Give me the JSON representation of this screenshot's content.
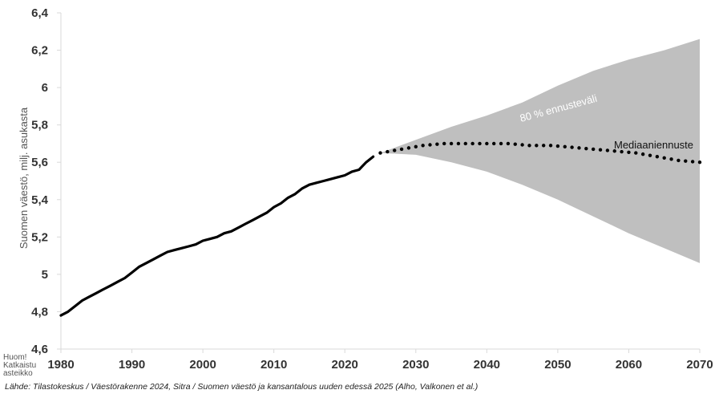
{
  "chart_data": {
    "type": "line",
    "title": "",
    "ylabel": "Suomen väestö, milj. asukasta",
    "xlabel": "",
    "xlim": [
      1980,
      2070
    ],
    "ylim": [
      4.6,
      6.4
    ],
    "x_ticks": [
      1980,
      1990,
      2000,
      2010,
      2020,
      2030,
      2040,
      2050,
      2060,
      2070
    ],
    "y_ticks": [
      "4,6",
      "4,8",
      "5",
      "5,2",
      "5,4",
      "5,6",
      "5,8",
      "6",
      "6,2",
      "6,4"
    ],
    "y_tick_values": [
      4.6,
      4.8,
      5.0,
      5.2,
      5.4,
      5.6,
      5.8,
      6.0,
      6.2,
      6.4
    ],
    "grid": false,
    "axis_break_note": [
      "Huom!",
      "Katkaistu",
      "asteikko"
    ],
    "annotations": {
      "band_label": "80 % ennusteväli",
      "median_label": "Mediaaniennuste"
    },
    "series": [
      {
        "style": "solid",
        "x": [
          1980,
          1981,
          1982,
          1983,
          1984,
          1985,
          1986,
          1987,
          1988,
          1989,
          1990,
          1991,
          1992,
          1993,
          1994,
          1995,
          1996,
          1997,
          1998,
          1999,
          2000,
          2001,
          2002,
          2003,
          2004,
          2005,
          2006,
          2007,
          2008,
          2009,
          2010,
          2011,
          2012,
          2013,
          2014,
          2015,
          2016,
          2017,
          2018,
          2019,
          2020,
          2021,
          2022,
          2023,
          2024
        ],
        "y": [
          4.78,
          4.8,
          4.83,
          4.86,
          4.88,
          4.9,
          4.92,
          4.94,
          4.96,
          4.98,
          5.01,
          5.04,
          5.06,
          5.08,
          5.1,
          5.12,
          5.13,
          5.14,
          5.15,
          5.16,
          5.18,
          5.19,
          5.2,
          5.22,
          5.23,
          5.25,
          5.27,
          5.29,
          5.31,
          5.33,
          5.36,
          5.38,
          5.41,
          5.43,
          5.46,
          5.48,
          5.49,
          5.5,
          5.51,
          5.52,
          5.53,
          5.55,
          5.56,
          5.6,
          5.63
        ]
      },
      {
        "name": "Mediaaniennuste",
        "style": "dotted",
        "x": [
          2025,
          2028,
          2031,
          2034,
          2037,
          2040,
          2043,
          2046,
          2049,
          2052,
          2055,
          2058,
          2061,
          2064,
          2067,
          2070
        ],
        "y": [
          5.65,
          5.67,
          5.69,
          5.7,
          5.7,
          5.7,
          5.7,
          5.69,
          5.69,
          5.68,
          5.67,
          5.66,
          5.65,
          5.63,
          5.61,
          5.6
        ]
      },
      {
        "name": "80 % ennusteväli",
        "style": "band",
        "x": [
          2025,
          2030,
          2035,
          2040,
          2045,
          2050,
          2055,
          2060,
          2065,
          2070
        ],
        "upper": [
          5.65,
          5.72,
          5.79,
          5.85,
          5.92,
          6.01,
          6.09,
          6.15,
          6.2,
          6.26
        ],
        "lower": [
          5.65,
          5.64,
          5.6,
          5.55,
          5.48,
          5.4,
          5.31,
          5.22,
          5.14,
          5.06
        ]
      }
    ]
  },
  "source": "Lähde: Tilastokeskus / Väestörakenne 2024, Sitra / Suomen väestö ja kansantalous uuden edessä 2025 (Alho, Valkonen et al.)",
  "colors": {
    "band": "#bfbfbf",
    "line": "#000000",
    "axis": "#d9d9d9"
  }
}
